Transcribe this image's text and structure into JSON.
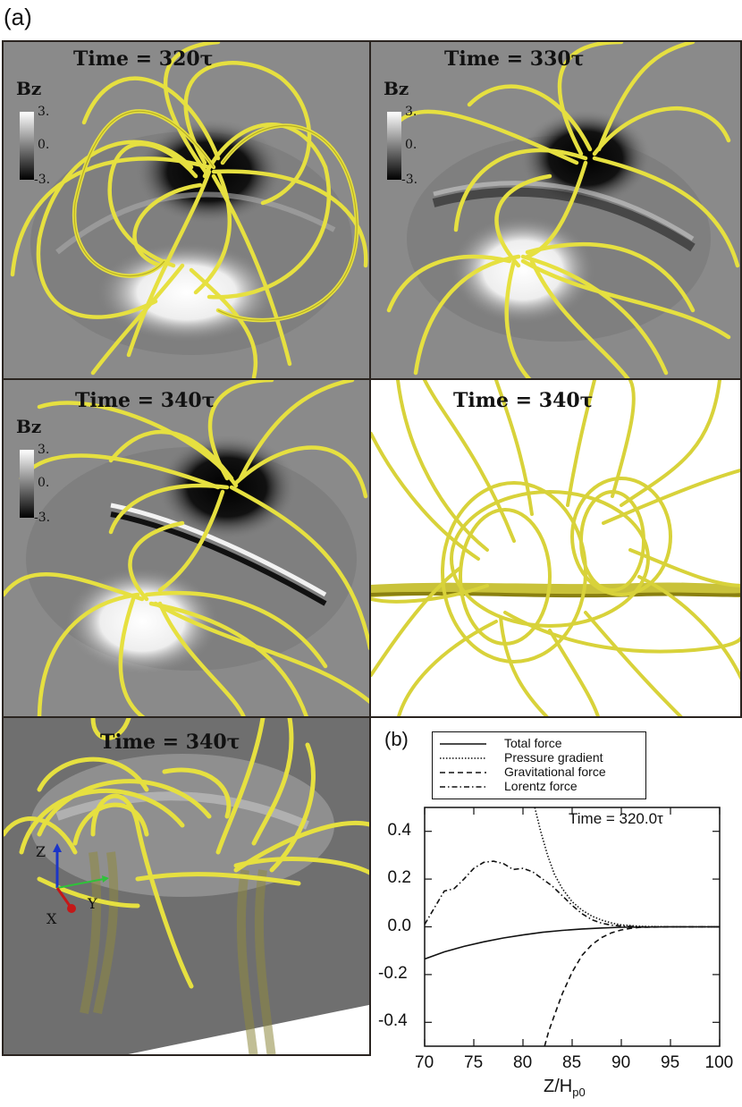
{
  "figure": {
    "label_a": "(a)",
    "label_b": "(b)"
  },
  "panels": [
    {
      "id": "p1",
      "title": "Time = 320τ",
      "colorbar": {
        "label": "Bz",
        "ticks": [
          "3.",
          "0.",
          "-3."
        ]
      }
    },
    {
      "id": "p2",
      "title": "Time = 330τ",
      "colorbar": {
        "label": "Bz",
        "ticks": [
          "3.",
          "0.",
          "-3."
        ]
      }
    },
    {
      "id": "p3",
      "title": "Time = 340τ",
      "colorbar": {
        "label": "Bz",
        "ticks": [
          "3.",
          "0.",
          "-3."
        ]
      }
    },
    {
      "id": "p4",
      "title": "Time = 340τ"
    },
    {
      "id": "p5",
      "title": "Time = 340τ",
      "axes": {
        "z": "Z",
        "y": "Y",
        "x": "X"
      }
    }
  ],
  "colors": {
    "fieldline": "#e6e040",
    "fieldline_stroke": "#9a8f12",
    "axis_z": "#1b35c8",
    "axis_y": "#2fc23a",
    "axis_x": "#c41818"
  },
  "chart_data": {
    "type": "line",
    "title": "Time = 320.0τ",
    "xlabel": "Z/H",
    "xlabel_sub": "p0",
    "ylabel": "",
    "xlim": [
      70,
      100
    ],
    "ylim": [
      -0.5,
      0.5
    ],
    "xticks": [
      "70",
      "75",
      "80",
      "85",
      "90",
      "95",
      "100"
    ],
    "yticks": [
      "0.4",
      "0.2",
      "0.0",
      "-0.2",
      "-0.4"
    ],
    "legend_position": "top",
    "series": [
      {
        "name": "Total force",
        "style": "solid",
        "x": [
          70,
          72,
          74,
          76,
          78,
          80,
          82,
          84,
          86,
          88,
          90,
          92,
          95,
          100
        ],
        "y": [
          -0.135,
          -0.105,
          -0.082,
          -0.063,
          -0.047,
          -0.034,
          -0.023,
          -0.015,
          -0.009,
          -0.005,
          -0.002,
          -0.001,
          0.0,
          0.0
        ]
      },
      {
        "name": "Pressure gradient",
        "style": "dotted",
        "x": [
          81.2,
          81.8,
          82.5,
          83.2,
          84,
          85,
          86,
          87,
          88,
          89,
          90,
          92,
          95,
          100
        ],
        "y": [
          0.5,
          0.4,
          0.3,
          0.22,
          0.16,
          0.105,
          0.07,
          0.045,
          0.028,
          0.016,
          0.008,
          0.002,
          0.0,
          0.0
        ]
      },
      {
        "name": "Gravitational force",
        "style": "dashed",
        "x": [
          82.2,
          82.6,
          83.2,
          84,
          85,
          86,
          87,
          88,
          89,
          90,
          91,
          92,
          95,
          100
        ],
        "y": [
          -0.5,
          -0.44,
          -0.37,
          -0.28,
          -0.19,
          -0.12,
          -0.075,
          -0.045,
          -0.025,
          -0.013,
          -0.006,
          -0.002,
          0.0,
          0.0
        ]
      },
      {
        "name": "Lorentz force",
        "style": "dashdot",
        "x": [
          70,
          71,
          72,
          73,
          74,
          75,
          76,
          77,
          78,
          79,
          80,
          81,
          82,
          83,
          84,
          85,
          86,
          87,
          88,
          89,
          90,
          92,
          95,
          100
        ],
        "y": [
          0.01,
          0.08,
          0.15,
          0.16,
          0.2,
          0.245,
          0.27,
          0.275,
          0.265,
          0.24,
          0.245,
          0.23,
          0.2,
          0.17,
          0.13,
          0.09,
          0.055,
          0.03,
          0.015,
          0.007,
          0.003,
          0.0,
          0.0,
          0.0
        ]
      }
    ]
  }
}
